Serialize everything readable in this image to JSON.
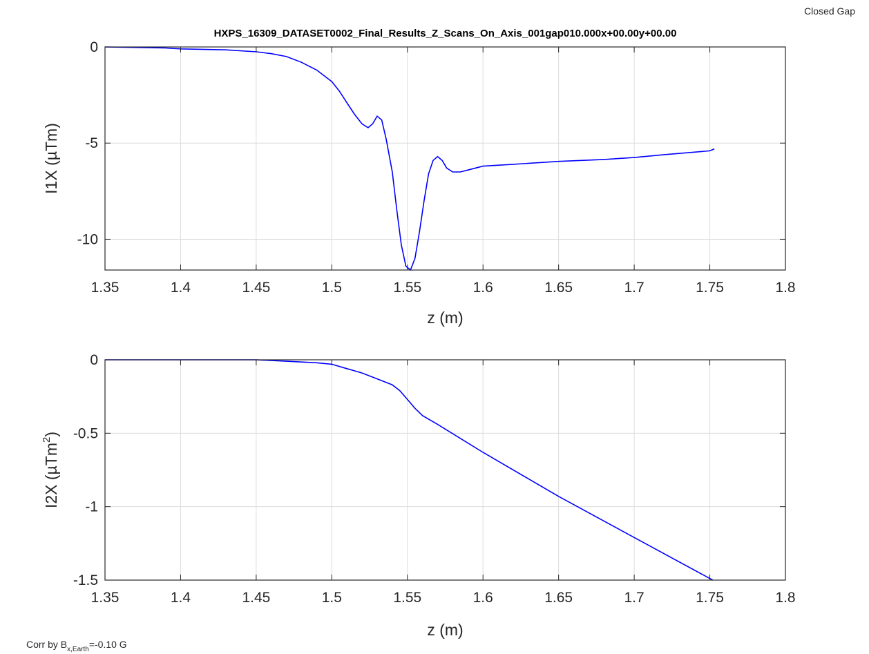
{
  "corner_label": "Closed Gap",
  "footnote": {
    "prefix": "Corr by B",
    "subscript": "x,Earth",
    "suffix": "=-0.10 G"
  },
  "chart_data": [
    {
      "type": "line",
      "title": "HXPS_16309_DATASET0002_Final_Results_Z_Scans_On_Axis_001gap010.000x+00.00y+00.00",
      "xlabel": "z (m)",
      "ylabel": {
        "main": "I1X (µTm)",
        "superscript": ""
      },
      "xlim": [
        1.35,
        1.8
      ],
      "ylim": [
        -11.6,
        0
      ],
      "xticks": [
        1.35,
        1.4,
        1.45,
        1.5,
        1.55,
        1.6,
        1.65,
        1.7,
        1.75,
        1.8
      ],
      "yticks": [
        0,
        -5,
        -10
      ],
      "grid": true,
      "color": "#0000ff",
      "series": [
        {
          "x": [
            1.35,
            1.39,
            1.4,
            1.43,
            1.45,
            1.46,
            1.47,
            1.48,
            1.49,
            1.5,
            1.505,
            1.51,
            1.515,
            1.52,
            1.524,
            1.527,
            1.53,
            1.533,
            1.536,
            1.54,
            1.543,
            1.546,
            1.549,
            1.552,
            1.555,
            1.558,
            1.561,
            1.564,
            1.567,
            1.57,
            1.573,
            1.576,
            1.58,
            1.585,
            1.59,
            1.6,
            1.62,
            1.65,
            1.68,
            1.7,
            1.72,
            1.75,
            1.753
          ],
          "y": [
            0,
            -0.05,
            -0.1,
            -0.15,
            -0.25,
            -0.35,
            -0.5,
            -0.8,
            -1.2,
            -1.8,
            -2.3,
            -2.9,
            -3.5,
            -4.0,
            -4.2,
            -4.0,
            -3.6,
            -3.8,
            -4.8,
            -6.5,
            -8.5,
            -10.3,
            -11.4,
            -11.6,
            -11.0,
            -9.6,
            -8.0,
            -6.6,
            -5.9,
            -5.7,
            -5.9,
            -6.3,
            -6.5,
            -6.5,
            -6.4,
            -6.2,
            -6.1,
            -5.95,
            -5.85,
            -5.75,
            -5.6,
            -5.4,
            -5.3
          ]
        }
      ]
    },
    {
      "type": "line",
      "title": "",
      "xlabel": "z (m)",
      "ylabel": {
        "main": "I2X (µTm",
        "superscript": "2",
        "close": ")"
      },
      "xlim": [
        1.35,
        1.8
      ],
      "ylim": [
        -1.5,
        0
      ],
      "xticks": [
        1.35,
        1.4,
        1.45,
        1.5,
        1.55,
        1.6,
        1.65,
        1.7,
        1.75,
        1.8
      ],
      "yticks": [
        0,
        -0.5,
        -1,
        -1.5
      ],
      "grid": true,
      "color": "#0000ff",
      "series": [
        {
          "x": [
            1.35,
            1.4,
            1.45,
            1.47,
            1.49,
            1.5,
            1.51,
            1.52,
            1.53,
            1.54,
            1.545,
            1.55,
            1.555,
            1.56,
            1.57,
            1.6,
            1.65,
            1.7,
            1.752
          ],
          "y": [
            0,
            0,
            0,
            -0.01,
            -0.02,
            -0.03,
            -0.06,
            -0.09,
            -0.13,
            -0.17,
            -0.21,
            -0.27,
            -0.33,
            -0.38,
            -0.44,
            -0.63,
            -0.93,
            -1.21,
            -1.5
          ]
        }
      ]
    }
  ]
}
